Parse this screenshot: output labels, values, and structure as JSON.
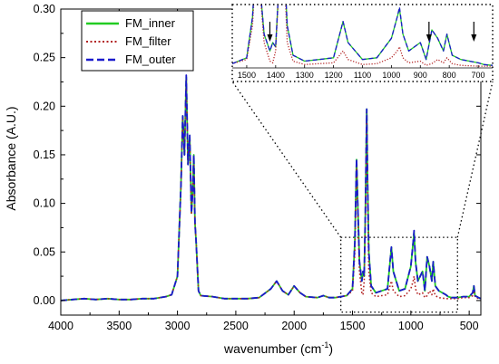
{
  "chart_data": {
    "type": "line",
    "xlabel": "wavenumber (cm",
    "xlabel_sup": "-1",
    "xlabel_end": ")",
    "ylabel": "Absorbance (A.U.)",
    "xlim": [
      4000,
      400
    ],
    "ylim": [
      -0.015,
      0.3
    ],
    "x_ticks": [
      4000,
      3500,
      3000,
      2500,
      2000,
      1500,
      1000,
      500
    ],
    "x_tick_labels": [
      "4000",
      "3500",
      "3000",
      "2500",
      "2000",
      "1500",
      "1000",
      "500"
    ],
    "y_ticks": [
      0.0,
      0.05,
      0.1,
      0.15,
      0.2,
      0.25,
      0.3
    ],
    "y_tick_labels": [
      "0.00",
      "0.05",
      "0.10",
      "0.15",
      "0.20",
      "0.25",
      "0.30"
    ],
    "legend_position": "top-left",
    "series": [
      {
        "name": "FM_inner",
        "color": "#22cc22",
        "style": "solid",
        "points": [
          [
            4000,
            0.0
          ],
          [
            3900,
            0.001
          ],
          [
            3800,
            0.002
          ],
          [
            3700,
            0.001
          ],
          [
            3600,
            0.002
          ],
          [
            3500,
            0.001
          ],
          [
            3400,
            0.001
          ],
          [
            3300,
            0.002
          ],
          [
            3200,
            0.002
          ],
          [
            3100,
            0.004
          ],
          [
            3050,
            0.006
          ],
          [
            3000,
            0.025
          ],
          [
            2970,
            0.12
          ],
          [
            2955,
            0.19
          ],
          [
            2940,
            0.15
          ],
          [
            2925,
            0.23
          ],
          [
            2910,
            0.14
          ],
          [
            2895,
            0.17
          ],
          [
            2880,
            0.09
          ],
          [
            2870,
            0.11
          ],
          [
            2860,
            0.15
          ],
          [
            2850,
            0.08
          ],
          [
            2840,
            0.06
          ],
          [
            2820,
            0.01
          ],
          [
            2800,
            0.005
          ],
          [
            2700,
            0.004
          ],
          [
            2600,
            0.002
          ],
          [
            2500,
            0.002
          ],
          [
            2400,
            0.002
          ],
          [
            2300,
            0.003
          ],
          [
            2200,
            0.012
          ],
          [
            2150,
            0.02
          ],
          [
            2100,
            0.01
          ],
          [
            2050,
            0.006
          ],
          [
            2000,
            0.015
          ],
          [
            1950,
            0.008
          ],
          [
            1900,
            0.004
          ],
          [
            1800,
            0.003
          ],
          [
            1750,
            0.005
          ],
          [
            1700,
            0.003
          ],
          [
            1650,
            0.003
          ],
          [
            1600,
            0.004
          ],
          [
            1550,
            0.005
          ],
          [
            1500,
            0.012
          ],
          [
            1480,
            0.06
          ],
          [
            1465,
            0.145
          ],
          [
            1455,
            0.1
          ],
          [
            1440,
            0.04
          ],
          [
            1420,
            0.02
          ],
          [
            1410,
            0.03
          ],
          [
            1400,
            0.025
          ],
          [
            1390,
            0.09
          ],
          [
            1378,
            0.197
          ],
          [
            1370,
            0.12
          ],
          [
            1360,
            0.05
          ],
          [
            1340,
            0.015
          ],
          [
            1300,
            0.008
          ],
          [
            1250,
            0.01
          ],
          [
            1200,
            0.012
          ],
          [
            1167,
            0.055
          ],
          [
            1150,
            0.03
          ],
          [
            1100,
            0.01
          ],
          [
            1050,
            0.012
          ],
          [
            1000,
            0.035
          ],
          [
            980,
            0.06
          ],
          [
            972,
            0.07
          ],
          [
            960,
            0.04
          ],
          [
            940,
            0.02
          ],
          [
            900,
            0.03
          ],
          [
            880,
            0.01
          ],
          [
            860,
            0.045
          ],
          [
            840,
            0.035
          ],
          [
            820,
            0.02
          ],
          [
            808,
            0.04
          ],
          [
            790,
            0.015
          ],
          [
            760,
            0.01
          ],
          [
            700,
            0.006
          ],
          [
            680,
            0.004
          ],
          [
            650,
            0.003
          ],
          [
            600,
            0.003
          ],
          [
            550,
            0.004
          ],
          [
            500,
            0.004
          ],
          [
            470,
            0.008
          ],
          [
            460,
            0.015
          ],
          [
            450,
            0.005
          ],
          [
            420,
            0.003
          ],
          [
            400,
            0.002
          ]
        ]
      },
      {
        "name": "FM_filter",
        "color": "#b22222",
        "style": "dotted",
        "points": [
          [
            4000,
            0.0
          ],
          [
            3900,
            0.001
          ],
          [
            3800,
            0.002
          ],
          [
            3700,
            0.001
          ],
          [
            3600,
            0.002
          ],
          [
            3500,
            0.001
          ],
          [
            3400,
            0.001
          ],
          [
            3300,
            0.002
          ],
          [
            3200,
            0.002
          ],
          [
            3100,
            0.004
          ],
          [
            3050,
            0.006
          ],
          [
            3000,
            0.025
          ],
          [
            2970,
            0.118
          ],
          [
            2955,
            0.188
          ],
          [
            2940,
            0.15
          ],
          [
            2925,
            0.228
          ],
          [
            2910,
            0.14
          ],
          [
            2895,
            0.168
          ],
          [
            2880,
            0.09
          ],
          [
            2870,
            0.11
          ],
          [
            2860,
            0.148
          ],
          [
            2850,
            0.08
          ],
          [
            2840,
            0.06
          ],
          [
            2820,
            0.01
          ],
          [
            2800,
            0.005
          ],
          [
            2700,
            0.004
          ],
          [
            2600,
            0.002
          ],
          [
            2500,
            0.002
          ],
          [
            2400,
            0.002
          ],
          [
            2300,
            0.003
          ],
          [
            2200,
            0.012
          ],
          [
            2150,
            0.02
          ],
          [
            2100,
            0.01
          ],
          [
            2050,
            0.006
          ],
          [
            2000,
            0.015
          ],
          [
            1950,
            0.008
          ],
          [
            1900,
            0.004
          ],
          [
            1800,
            0.003
          ],
          [
            1750,
            0.005
          ],
          [
            1700,
            0.003
          ],
          [
            1650,
            0.003
          ],
          [
            1600,
            0.004
          ],
          [
            1550,
            0.005
          ],
          [
            1500,
            0.01
          ],
          [
            1480,
            0.05
          ],
          [
            1465,
            0.14
          ],
          [
            1455,
            0.095
          ],
          [
            1440,
            0.03
          ],
          [
            1420,
            0.008
          ],
          [
            1410,
            0.006
          ],
          [
            1400,
            0.02
          ],
          [
            1390,
            0.085
          ],
          [
            1378,
            0.195
          ],
          [
            1370,
            0.11
          ],
          [
            1360,
            0.03
          ],
          [
            1340,
            0.008
          ],
          [
            1300,
            0.004
          ],
          [
            1250,
            0.005
          ],
          [
            1200,
            0.006
          ],
          [
            1167,
            0.02
          ],
          [
            1150,
            0.01
          ],
          [
            1100,
            0.004
          ],
          [
            1050,
            0.005
          ],
          [
            1000,
            0.012
          ],
          [
            980,
            0.02
          ],
          [
            972,
            0.025
          ],
          [
            960,
            0.012
          ],
          [
            940,
            0.006
          ],
          [
            900,
            0.008
          ],
          [
            880,
            0.003
          ],
          [
            860,
            0.005
          ],
          [
            840,
            0.01
          ],
          [
            820,
            0.006
          ],
          [
            808,
            0.012
          ],
          [
            790,
            0.005
          ],
          [
            760,
            0.003
          ],
          [
            700,
            0.002
          ],
          [
            680,
            0.002
          ],
          [
            650,
            0.002
          ],
          [
            600,
            0.002
          ],
          [
            550,
            0.003
          ],
          [
            500,
            0.003
          ],
          [
            470,
            0.005
          ],
          [
            460,
            0.01
          ],
          [
            450,
            0.004
          ],
          [
            420,
            0.002
          ],
          [
            400,
            0.002
          ]
        ]
      },
      {
        "name": "FM_outer",
        "color": "#1a1acc",
        "style": "dashed",
        "points": [
          [
            4000,
            0.0
          ],
          [
            3900,
            0.001
          ],
          [
            3800,
            0.002
          ],
          [
            3700,
            0.001
          ],
          [
            3600,
            0.002
          ],
          [
            3500,
            0.001
          ],
          [
            3400,
            0.001
          ],
          [
            3300,
            0.002
          ],
          [
            3200,
            0.002
          ],
          [
            3100,
            0.004
          ],
          [
            3050,
            0.006
          ],
          [
            3000,
            0.025
          ],
          [
            2970,
            0.12
          ],
          [
            2955,
            0.19
          ],
          [
            2940,
            0.15
          ],
          [
            2925,
            0.232
          ],
          [
            2910,
            0.14
          ],
          [
            2895,
            0.17
          ],
          [
            2880,
            0.09
          ],
          [
            2870,
            0.11
          ],
          [
            2860,
            0.15
          ],
          [
            2850,
            0.08
          ],
          [
            2840,
            0.06
          ],
          [
            2820,
            0.01
          ],
          [
            2800,
            0.005
          ],
          [
            2700,
            0.004
          ],
          [
            2600,
            0.002
          ],
          [
            2500,
            0.002
          ],
          [
            2400,
            0.002
          ],
          [
            2300,
            0.003
          ],
          [
            2200,
            0.012
          ],
          [
            2150,
            0.02
          ],
          [
            2100,
            0.01
          ],
          [
            2050,
            0.006
          ],
          [
            2000,
            0.015
          ],
          [
            1950,
            0.008
          ],
          [
            1900,
            0.004
          ],
          [
            1800,
            0.003
          ],
          [
            1750,
            0.005
          ],
          [
            1700,
            0.003
          ],
          [
            1650,
            0.003
          ],
          [
            1600,
            0.004
          ],
          [
            1550,
            0.005
          ],
          [
            1500,
            0.012
          ],
          [
            1480,
            0.06
          ],
          [
            1465,
            0.146
          ],
          [
            1455,
            0.1
          ],
          [
            1440,
            0.04
          ],
          [
            1420,
            0.02
          ],
          [
            1410,
            0.03
          ],
          [
            1400,
            0.025
          ],
          [
            1390,
            0.09
          ],
          [
            1378,
            0.197
          ],
          [
            1370,
            0.12
          ],
          [
            1360,
            0.05
          ],
          [
            1340,
            0.015
          ],
          [
            1300,
            0.008
          ],
          [
            1250,
            0.01
          ],
          [
            1200,
            0.012
          ],
          [
            1167,
            0.055
          ],
          [
            1150,
            0.03
          ],
          [
            1100,
            0.01
          ],
          [
            1050,
            0.012
          ],
          [
            1000,
            0.035
          ],
          [
            980,
            0.06
          ],
          [
            972,
            0.072
          ],
          [
            960,
            0.04
          ],
          [
            940,
            0.02
          ],
          [
            900,
            0.03
          ],
          [
            880,
            0.01
          ],
          [
            860,
            0.045
          ],
          [
            840,
            0.035
          ],
          [
            820,
            0.02
          ],
          [
            808,
            0.04
          ],
          [
            790,
            0.015
          ],
          [
            760,
            0.01
          ],
          [
            700,
            0.006
          ],
          [
            680,
            0.004
          ],
          [
            650,
            0.003
          ],
          [
            600,
            0.003
          ],
          [
            550,
            0.004
          ],
          [
            500,
            0.004
          ],
          [
            470,
            0.008
          ],
          [
            460,
            0.015
          ],
          [
            450,
            0.005
          ],
          [
            420,
            0.003
          ],
          [
            400,
            0.002
          ]
        ]
      }
    ],
    "inset": {
      "xlim": [
        1550,
        650
      ],
      "ylim": [
        0.0,
        0.075
      ],
      "x_ticks": [
        1500,
        1400,
        1300,
        1200,
        1100,
        1000,
        900,
        800,
        700
      ],
      "x_tick_labels": [
        "1500",
        "1400",
        "1300",
        "1200",
        "1100",
        "1000",
        "900",
        "800",
        "700"
      ],
      "arrows_at": [
        1420,
        870,
        715
      ],
      "zoom_region": {
        "xlim": [
          1600,
          600
        ],
        "ylim": [
          -0.012,
          0.065
        ]
      }
    }
  }
}
